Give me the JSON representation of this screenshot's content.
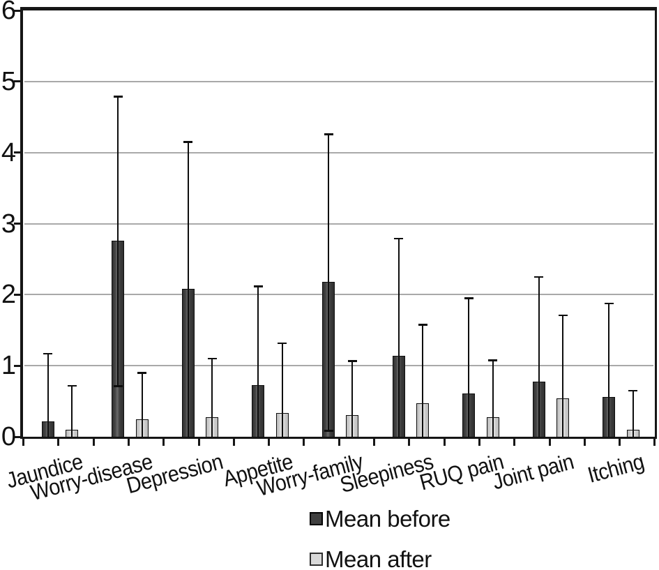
{
  "chart_data": {
    "type": "bar",
    "categories": [
      "Jaundice",
      "Worry-disease",
      "Depression",
      "Appetite",
      "Worry-family",
      "Sleepiness",
      "RUQ pain",
      "Joint pain",
      "Itching"
    ],
    "series": [
      {
        "name": "Mean before",
        "color": "#3f3f3f",
        "means": [
          0.21,
          2.75,
          2.07,
          0.72,
          2.17,
          1.13,
          0.6,
          0.77,
          0.55
        ],
        "sd": [
          0.96,
          2.04,
          2.08,
          1.4,
          2.09,
          1.66,
          1.35,
          1.48,
          1.33
        ]
      },
      {
        "name": "Mean after",
        "color": "#d9d9d9",
        "means": [
          0.09,
          0.24,
          0.27,
          0.32,
          0.29,
          0.46,
          0.27,
          0.53,
          0.09
        ],
        "sd": [
          0.63,
          0.66,
          0.83,
          1.0,
          0.78,
          1.12,
          0.81,
          1.18,
          0.56
        ]
      }
    ],
    "error_bars": true,
    "xlabel": "",
    "ylabel": "",
    "ylim": [
      0,
      6
    ],
    "yticks": [
      0,
      1,
      2,
      3,
      4,
      5,
      6
    ],
    "grid": true,
    "legend_position": "bottom-center"
  },
  "colors": {
    "axis": "#161616",
    "grid": "#a9a9a9",
    "error_bar": "#0d0d0d",
    "bar_before": "#3f3f3f",
    "bar_after": "#d9d9d9",
    "background": "#ffffff"
  }
}
